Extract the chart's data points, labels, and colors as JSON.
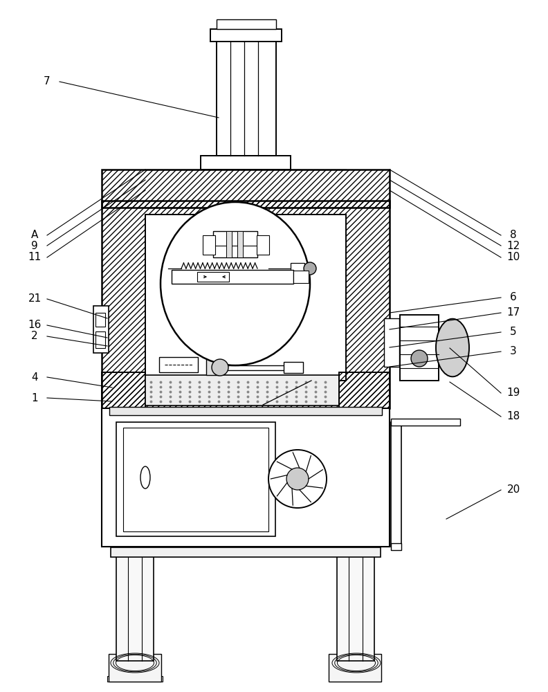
{
  "bg": "#ffffff",
  "lc": "#000000",
  "fw": 7.92,
  "fh": 10.0,
  "dpi": 100,
  "annotations_left": [
    [
      "7",
      62,
      118,
      310,
      165
    ],
    [
      "A",
      50,
      355,
      168,
      355
    ],
    [
      "9",
      50,
      338,
      168,
      338
    ],
    [
      "11",
      50,
      320,
      168,
      320
    ],
    [
      "21",
      50,
      438,
      158,
      480
    ],
    [
      "16",
      50,
      490,
      158,
      504
    ],
    [
      "2",
      50,
      505,
      158,
      512
    ],
    [
      "4",
      50,
      558,
      168,
      590
    ],
    [
      "1",
      50,
      580,
      168,
      600
    ]
  ],
  "annotations_right": [
    [
      "8",
      742,
      355,
      612,
      355
    ],
    [
      "12",
      742,
      338,
      612,
      338
    ],
    [
      "10",
      742,
      320,
      612,
      320
    ],
    [
      "6",
      742,
      420,
      612,
      450
    ],
    [
      "17",
      742,
      440,
      612,
      468
    ],
    [
      "5",
      742,
      462,
      612,
      492
    ],
    [
      "3",
      742,
      485,
      612,
      520
    ],
    [
      "19",
      742,
      572,
      700,
      560
    ],
    [
      "18",
      742,
      600,
      700,
      608
    ],
    [
      "20",
      742,
      720,
      700,
      760
    ]
  ]
}
